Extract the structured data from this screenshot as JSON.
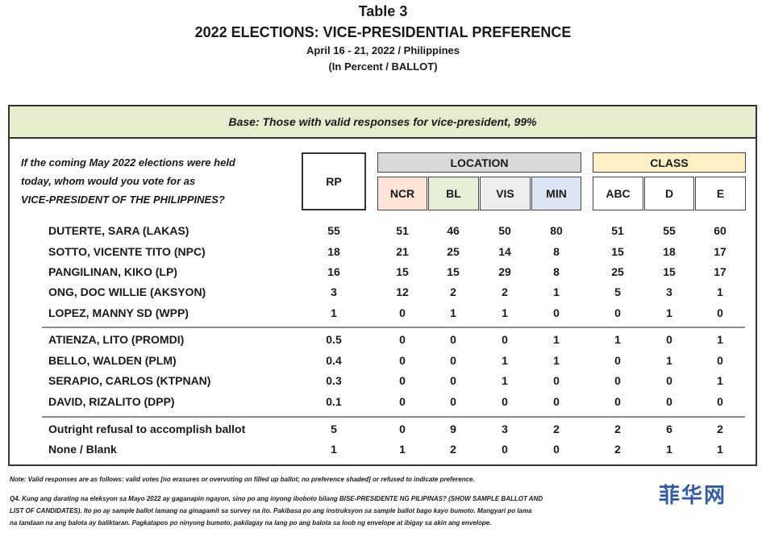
{
  "title": {
    "table": "Table 3",
    "main": "2022 ELECTIONS: VICE-PRESIDENTIAL PREFERENCE",
    "dates": "April 16 - 21, 2022 / Philippines",
    "units": "(In Percent / BALLOT)"
  },
  "base": "Base: Those with valid responses for vice-president, 99%",
  "question": [
    "If the coming May 2022 elections were held",
    "today, whom would you vote for as",
    "VICE-PRESIDENT OF THE PHILIPPINES?"
  ],
  "headers": {
    "rp": "RP",
    "location": "LOCATION",
    "class": "CLASS",
    "ncr": "NCR",
    "bl": "BL",
    "vis": "VIS",
    "min": "MIN",
    "abc": "ABC",
    "d": "D",
    "e": "E"
  },
  "rows": [
    {
      "name": "DUTERTE, SARA (LAKAS)",
      "v": [
        "55",
        "51",
        "46",
        "50",
        "80",
        "51",
        "55",
        "60"
      ]
    },
    {
      "name": "SOTTO, VICENTE TITO (NPC)",
      "v": [
        "18",
        "21",
        "25",
        "14",
        "8",
        "15",
        "18",
        "17"
      ]
    },
    {
      "name": "PANGILINAN, KIKO (LP)",
      "v": [
        "16",
        "15",
        "15",
        "29",
        "8",
        "25",
        "15",
        "17"
      ]
    },
    {
      "name": "ONG, DOC WILLIE (AKSYON)",
      "v": [
        "3",
        "12",
        "2",
        "2",
        "1",
        "5",
        "3",
        "1"
      ]
    },
    {
      "name": "LOPEZ, MANNY SD (WPP)",
      "v": [
        "1",
        "0",
        "1",
        "1",
        "0",
        "0",
        "1",
        "0"
      ]
    },
    {
      "name": "ATIENZA, LITO (PROMDI)",
      "v": [
        "0.5",
        "0",
        "0",
        "0",
        "1",
        "1",
        "0",
        "1"
      ]
    },
    {
      "name": "BELLO, WALDEN (PLM)",
      "v": [
        "0.4",
        "0",
        "0",
        "1",
        "1",
        "0",
        "1",
        "0"
      ]
    },
    {
      "name": "SERAPIO, CARLOS (KTPNAN)",
      "v": [
        "0.3",
        "0",
        "0",
        "1",
        "0",
        "0",
        "0",
        "1"
      ]
    },
    {
      "name": "DAVID, RIZALITO (DPP)",
      "v": [
        "0.1",
        "0",
        "0",
        "0",
        "0",
        "0",
        "0",
        "0"
      ]
    },
    {
      "name": "Outright refusal to accomplish ballot",
      "v": [
        "5",
        "0",
        "9",
        "3",
        "2",
        "2",
        "6",
        "2"
      ]
    },
    {
      "name": "None / Blank",
      "v": [
        "1",
        "1",
        "2",
        "0",
        "0",
        "2",
        "1",
        "1"
      ]
    }
  ],
  "footnotes": {
    "note": "Note: Valid responses are as follows: valid votes [no erasures or overvoting on filled up ballot; no preference shaded] or refused to indicate preference.",
    "q4_line1": "Q4.  Kung ang darating na eleksyon sa Mayo 2022 ay gaganapin ngayon, sino po ang inyong iboboto bilang BISE-PRESIDENTE NG PILIPINAS? (SHOW SAMPLE BALLOT AND",
    "q4_line2": "LIST OF CANDIDATES).  Ito po ay sample ballot lamang na ginagamit sa survey na ito.  Pakibasa po ang instruksyon sa sample ballot bago kayo bumoto. Mangyari po lama",
    "q4_line3": "na tandaan na ang balota ay baliktaran. Pagkatapos po ninyong bumoto, pakilagay na lang po ang balota sa loob ng envelope at ibigay sa akin ang envelope."
  },
  "watermark": "菲华网"
}
